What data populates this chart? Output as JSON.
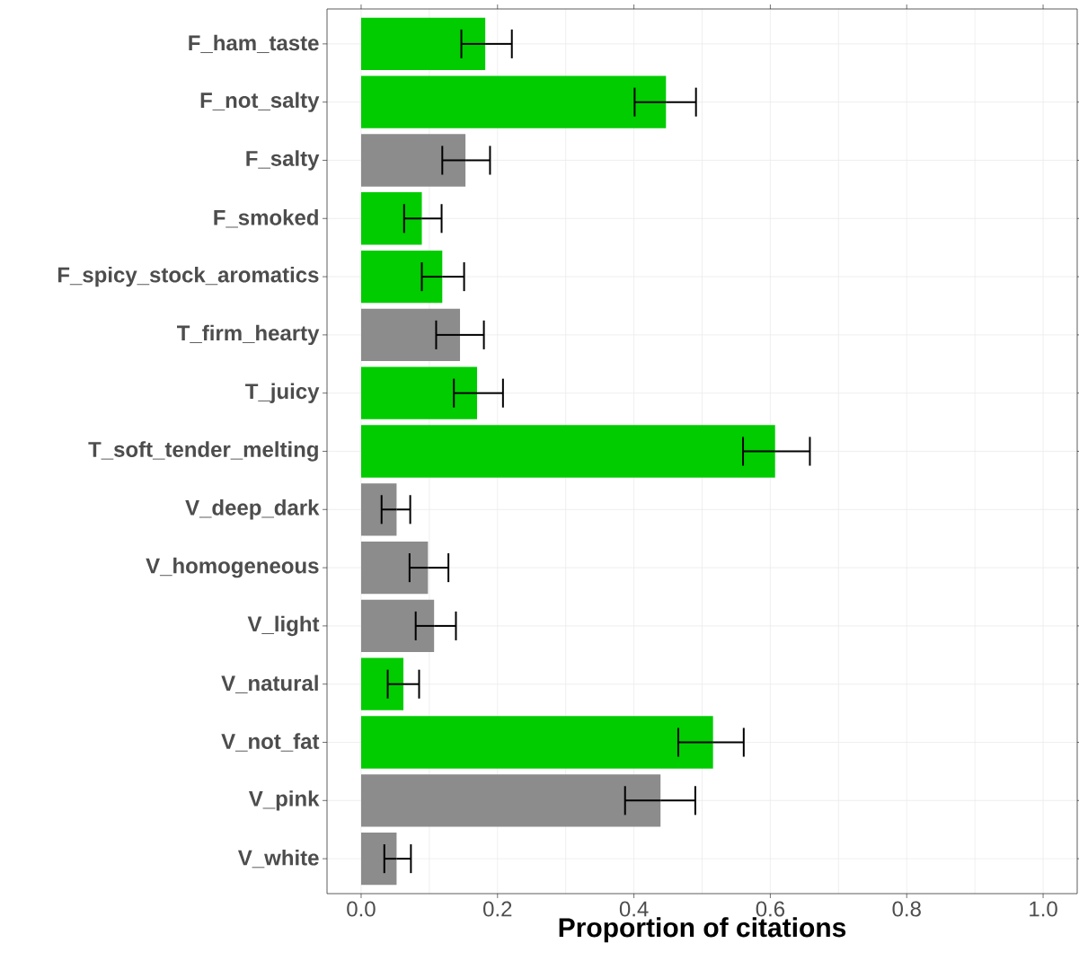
{
  "chart_data": {
    "type": "bar",
    "orientation": "horizontal",
    "xlabel": "Proportion of citations",
    "categories": [
      "F_ham_taste",
      "F_not_salty",
      "F_salty",
      "F_smoked",
      "F_spicy_stock_aromatics",
      "T_firm_hearty",
      "T_juicy",
      "T_soft_tender_melting",
      "V_deep_dark",
      "V_homogeneous",
      "V_light",
      "V_natural",
      "V_not_fat",
      "V_pink",
      "V_white"
    ],
    "values": [
      0.182,
      0.447,
      0.153,
      0.089,
      0.119,
      0.145,
      0.17,
      0.607,
      0.052,
      0.098,
      0.107,
      0.062,
      0.516,
      0.439,
      0.052
    ],
    "errors": [
      [
        0.147,
        0.221
      ],
      [
        0.401,
        0.491
      ],
      [
        0.119,
        0.189
      ],
      [
        0.063,
        0.118
      ],
      [
        0.089,
        0.151
      ],
      [
        0.11,
        0.18
      ],
      [
        0.136,
        0.208
      ],
      [
        0.56,
        0.658
      ],
      [
        0.03,
        0.072
      ],
      [
        0.071,
        0.128
      ],
      [
        0.08,
        0.139
      ],
      [
        0.039,
        0.085
      ],
      [
        0.465,
        0.561
      ],
      [
        0.387,
        0.49
      ],
      [
        0.034,
        0.073
      ]
    ],
    "colors": [
      "#00cc00",
      "#00cc00",
      "#8c8c8c",
      "#00cc00",
      "#00cc00",
      "#8c8c8c",
      "#00cc00",
      "#00cc00",
      "#8c8c8c",
      "#8c8c8c",
      "#8c8c8c",
      "#00cc00",
      "#00cc00",
      "#8c8c8c",
      "#8c8c8c"
    ],
    "xlim": [
      -0.05,
      1.05
    ],
    "xticks": [
      {
        "value": 0,
        "label": "0.0"
      },
      0.2,
      0.4,
      0.6,
      0.8,
      {
        "value": 1,
        "label": "1.0"
      }
    ],
    "grid": true
  }
}
